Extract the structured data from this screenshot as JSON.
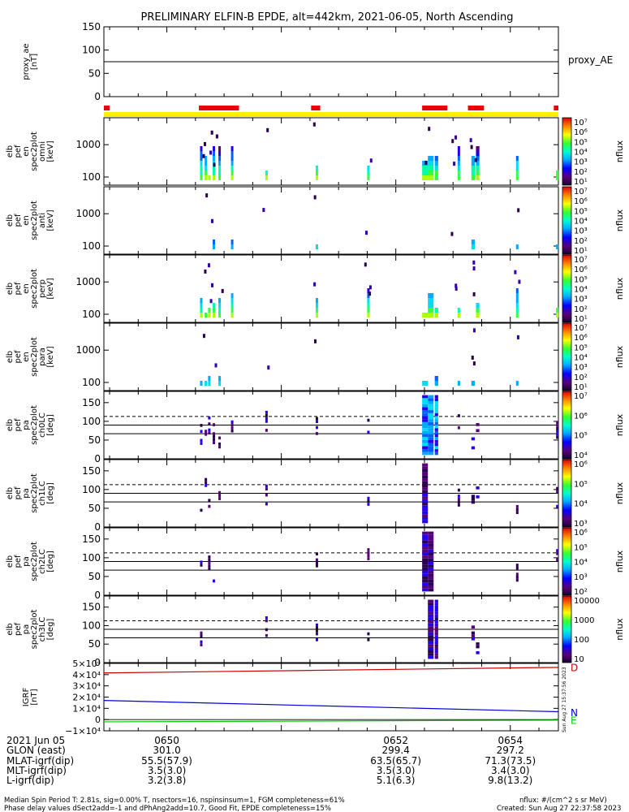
{
  "title": "PRELIMINARY ELFIN-B EPDE, alt=442km, 2021-06-05, North Ascending",
  "stamp": "Sun Aug 27 15:37:56 2023",
  "chart_data": [
    {
      "type": "line",
      "ylabel": [
        "proxy_ae",
        "[nT]"
      ],
      "series": [
        {
          "name": "proxy_AE",
          "values": [
            75,
            75
          ]
        }
      ],
      "ylim": [
        0,
        150
      ],
      "yticks": [
        "150",
        "100",
        "50",
        "0"
      ],
      "grid": false
    },
    {
      "type": "bar",
      "description_bars": "science-zone / fgm quality flags",
      "red_segments": [
        [
          -0.55,
          -0.5
        ],
        [
          0.28,
          0.63
        ],
        [
          1.26,
          1.34
        ],
        [
          2.23,
          2.45
        ],
        [
          2.63,
          2.77
        ],
        [
          3.38,
          3.42
        ]
      ],
      "yellow_band": [
        -0.55,
        3.42
      ]
    },
    {
      "type": "heatmap",
      "ylabel": [
        "elb",
        "pef",
        "en",
        "spec2plot",
        "omni",
        "[keV]"
      ],
      "yticks": [
        "1000",
        "100"
      ],
      "yscale": "log",
      "colorbar": {
        "label": "nflux",
        "ticks": [
          "10⁷",
          "10⁶",
          "10⁵",
          "10⁴",
          "10³",
          "10²",
          "10¹"
        ]
      }
    },
    {
      "type": "heatmap",
      "ylabel": [
        "elb",
        "pef",
        "en",
        "spec2plot",
        "anti",
        "[keV]"
      ],
      "yticks": [
        "1000",
        "100"
      ],
      "yscale": "log",
      "colorbar": {
        "label": "nflux",
        "ticks": [
          "10⁷",
          "10⁶",
          "10⁵",
          "10⁴",
          "10³",
          "10²",
          "10¹"
        ]
      }
    },
    {
      "type": "heatmap",
      "ylabel": [
        "elb",
        "pef",
        "en",
        "spec2plot",
        "perp",
        "[keV]"
      ],
      "yticks": [
        "1000",
        "100"
      ],
      "yscale": "log",
      "colorbar": {
        "label": "nflux",
        "ticks": [
          "10⁷",
          "10⁶",
          "10⁵",
          "10⁴",
          "10³",
          "10²",
          "10¹"
        ]
      }
    },
    {
      "type": "heatmap",
      "ylabel": [
        "elb",
        "pef",
        "en",
        "spec2plot",
        "para",
        "[keV]"
      ],
      "yticks": [
        "1000",
        "100"
      ],
      "yscale": "log",
      "colorbar": {
        "label": "nflux",
        "ticks": [
          "10⁷",
          "10⁶",
          "10⁵",
          "10⁴",
          "10³",
          "10²",
          "10¹"
        ]
      }
    },
    {
      "type": "heatmap",
      "ylabel": [
        "elb",
        "pef",
        "pa",
        "spec2plot",
        "ch0LC",
        "[deg]"
      ],
      "yticks": [
        "150",
        "100",
        "50",
        "0"
      ],
      "ylim": [
        0,
        180
      ],
      "colorbar": {
        "label": "nflux",
        "ticks": [
          "10⁷",
          "10⁶",
          "10⁵",
          "10⁴"
        ]
      }
    },
    {
      "type": "heatmap",
      "ylabel": [
        "elb",
        "pef",
        "pa",
        "spec2plot",
        "ch1LC",
        "[deg]"
      ],
      "yticks": [
        "150",
        "100",
        "50",
        "0"
      ],
      "ylim": [
        0,
        180
      ],
      "colorbar": {
        "label": "nflux",
        "ticks": [
          "10⁶",
          "10⁵",
          "10⁴",
          "10³"
        ]
      }
    },
    {
      "type": "heatmap",
      "ylabel": [
        "elb",
        "pef",
        "pa",
        "spec2plot",
        "ch2LC",
        "[deg]"
      ],
      "yticks": [
        "150",
        "100",
        "50",
        "0"
      ],
      "ylim": [
        0,
        180
      ],
      "colorbar": {
        "label": "nflux",
        "ticks": [
          "10⁶",
          "10⁵",
          "10⁴",
          "10³",
          "10²"
        ]
      }
    },
    {
      "type": "heatmap",
      "ylabel": [
        "elb",
        "pef",
        "pa",
        "spec2plot",
        "ch3LC",
        "[deg]"
      ],
      "yticks": [
        "150",
        "100",
        "50",
        "0"
      ],
      "ylim": [
        0,
        180
      ],
      "colorbar": {
        "label": "nflux",
        "ticks": [
          "10000",
          "1000",
          "100",
          "10"
        ]
      }
    },
    {
      "type": "line",
      "ylabel": [
        "IGRF",
        "[nT]"
      ],
      "yticks": [
        "5×10⁴",
        "4×10⁴",
        "3×10⁴",
        "2×10⁴",
        "1×10⁴",
        "0",
        "−1×10⁴"
      ],
      "ylim": [
        -10000,
        50000
      ],
      "series": [
        {
          "name": "D",
          "color": "#cc0000",
          "x": [
            -0.55,
            3.42
          ],
          "values": [
            41500,
            46500
          ]
        },
        {
          "name": "N",
          "color": "#0000dd",
          "x": [
            -0.55,
            3.42
          ],
          "values": [
            17000,
            7000
          ]
        },
        {
          "name": "E",
          "color": "#00cc00",
          "x": [
            -0.55,
            3.42
          ],
          "values": [
            -2000,
            -500
          ]
        }
      ]
    }
  ],
  "time_axis": {
    "date": "2021 Jun 05",
    "ticks": [
      "0650",
      "0652",
      "0654"
    ],
    "rows": [
      {
        "label": "GLON (east)",
        "values": [
          "301.0",
          "299.4",
          "297.2"
        ]
      },
      {
        "label": "MLAT-igrf(dip)",
        "values": [
          "55.5(57.9)",
          "63.5(65.7)",
          "71.3(73.5)"
        ]
      },
      {
        "label": "MLT-igrf(dip)",
        "values": [
          "3.5(3.0)",
          "3.5(3.0)",
          "3.4(3.0)"
        ]
      },
      {
        "label": "L-igrf(dip)",
        "values": [
          "3.2(3.8)",
          "5.1(6.3)",
          "9.8(13.2)"
        ]
      }
    ]
  },
  "footer": {
    "left1": "Median Spin Period T: 2.81s, sig=0.00% T, nsectors=16, nspinsinsum=1, FGM completeness=61%",
    "left2": "Phase delay values dSect2add=-1 and dPhAng2add=10.7, Good Fit, EPDE completeness=15%",
    "right1": "nflux: #/(cm^2 s sr MeV)",
    "right2": "Created: Sun Aug 27 22:37:58 2023"
  }
}
